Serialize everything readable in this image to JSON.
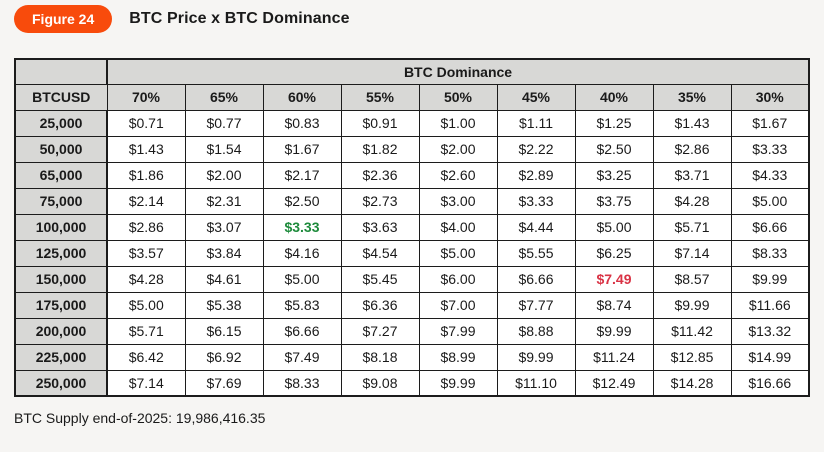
{
  "figure": {
    "badge_label": "Figure 24",
    "title": "BTC Price x BTC Dominance"
  },
  "chart_data": {
    "type": "table",
    "title": "BTC Price x BTC Dominance",
    "group_header": "BTC Dominance",
    "row_header": "BTCUSD",
    "columns": [
      "70%",
      "65%",
      "60%",
      "55%",
      "50%",
      "45%",
      "40%",
      "35%",
      "30%"
    ],
    "rows": [
      {
        "btcusd": "25,000",
        "values": [
          "$0.71",
          "$0.77",
          "$0.83",
          "$0.91",
          "$1.00",
          "$1.11",
          "$1.25",
          "$1.43",
          "$1.67"
        ]
      },
      {
        "btcusd": "50,000",
        "values": [
          "$1.43",
          "$1.54",
          "$1.67",
          "$1.82",
          "$2.00",
          "$2.22",
          "$2.50",
          "$2.86",
          "$3.33"
        ]
      },
      {
        "btcusd": "65,000",
        "values": [
          "$1.86",
          "$2.00",
          "$2.17",
          "$2.36",
          "$2.60",
          "$2.89",
          "$3.25",
          "$3.71",
          "$4.33"
        ]
      },
      {
        "btcusd": "75,000",
        "values": [
          "$2.14",
          "$2.31",
          "$2.50",
          "$2.73",
          "$3.00",
          "$3.33",
          "$3.75",
          "$4.28",
          "$5.00"
        ]
      },
      {
        "btcusd": "100,000",
        "values": [
          "$2.86",
          "$3.07",
          "$3.33",
          "$3.63",
          "$4.00",
          "$4.44",
          "$5.00",
          "$5.71",
          "$6.66"
        ]
      },
      {
        "btcusd": "125,000",
        "values": [
          "$3.57",
          "$3.84",
          "$4.16",
          "$4.54",
          "$5.00",
          "$5.55",
          "$6.25",
          "$7.14",
          "$8.33"
        ]
      },
      {
        "btcusd": "150,000",
        "values": [
          "$4.28",
          "$4.61",
          "$5.00",
          "$5.45",
          "$6.00",
          "$6.66",
          "$7.49",
          "$8.57",
          "$9.99"
        ]
      },
      {
        "btcusd": "175,000",
        "values": [
          "$5.00",
          "$5.38",
          "$5.83",
          "$6.36",
          "$7.00",
          "$7.77",
          "$8.74",
          "$9.99",
          "$11.66"
        ]
      },
      {
        "btcusd": "200,000",
        "values": [
          "$5.71",
          "$6.15",
          "$6.66",
          "$7.27",
          "$7.99",
          "$8.88",
          "$9.99",
          "$11.42",
          "$13.32"
        ]
      },
      {
        "btcusd": "225,000",
        "values": [
          "$6.42",
          "$6.92",
          "$7.49",
          "$8.18",
          "$8.99",
          "$9.99",
          "$11.24",
          "$12.85",
          "$14.99"
        ]
      },
      {
        "btcusd": "250,000",
        "values": [
          "$7.14",
          "$7.69",
          "$8.33",
          "$9.08",
          "$9.99",
          "$11.10",
          "$12.49",
          "$14.28",
          "$16.66"
        ]
      }
    ],
    "highlights": [
      {
        "row": 4,
        "col": 2,
        "value": "$3.33",
        "color": "green"
      },
      {
        "row": 6,
        "col": 6,
        "value": "$7.49",
        "color": "red"
      }
    ],
    "layout_hints": {
      "grid": "on",
      "first_column_header": true
    }
  },
  "footer": {
    "note": "BTC Supply end-of-2025: 19,986,416.35"
  },
  "colors": {
    "badge_orange": "#f84b0c",
    "header_gray": "#d8d8d6",
    "page_background": "#f6f5f3",
    "border": "#1c1c1c",
    "highlight_green": "#1e8b3c",
    "highlight_red": "#d93345"
  }
}
